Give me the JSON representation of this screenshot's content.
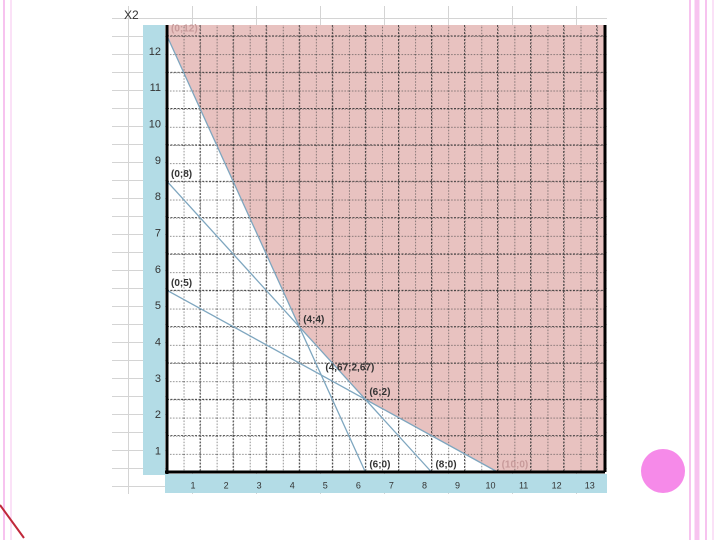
{
  "chart_data": {
    "type": "line",
    "y_axis_label": "X2",
    "xlim": [
      0,
      13.25
    ],
    "ylim": [
      0,
      12.3
    ],
    "xticks": [
      1,
      2,
      3,
      4,
      5,
      6,
      7,
      8,
      9,
      10,
      11,
      12,
      13
    ],
    "yticks": [
      1,
      2,
      3,
      4,
      5,
      6,
      7,
      8,
      9,
      10,
      11,
      12
    ],
    "grid": true,
    "region": {
      "color": "#e8c2c0",
      "x": [
        0,
        4,
        6,
        10
      ],
      "y": [
        12,
        4,
        2,
        0
      ]
    },
    "series": [
      {
        "color": "#7ea6bf",
        "x": [
          0,
          6
        ],
        "values": [
          12,
          0
        ]
      },
      {
        "color": "#7ea6bf",
        "x": [
          0,
          8
        ],
        "values": [
          8,
          0
        ]
      },
      {
        "color": "#7ea6bf",
        "x": [
          0,
          10
        ],
        "values": [
          5,
          0
        ]
      }
    ],
    "annotations": [
      {
        "text": "(0;12)",
        "x": 0,
        "y": 12,
        "color": "#c79a9a"
      },
      {
        "text": "(0;8)",
        "x": 0,
        "y": 8,
        "color": "#333333"
      },
      {
        "text": "(0;5)",
        "x": 0,
        "y": 5,
        "color": "#333333"
      },
      {
        "text": "(4;4)",
        "x": 4,
        "y": 4,
        "color": "#333333"
      },
      {
        "text": "(4,67;2,67)",
        "x": 4.67,
        "y": 2.67,
        "color": "#333333"
      },
      {
        "text": "(6;2)",
        "x": 6,
        "y": 2,
        "color": "#333333"
      },
      {
        "text": "(6;0)",
        "x": 6,
        "y": 0,
        "color": "#333333"
      },
      {
        "text": "(8;0)",
        "x": 8,
        "y": 0,
        "color": "#333333"
      },
      {
        "text": "(10;0)",
        "x": 10,
        "y": 0,
        "color": "#c79a9a"
      }
    ]
  }
}
